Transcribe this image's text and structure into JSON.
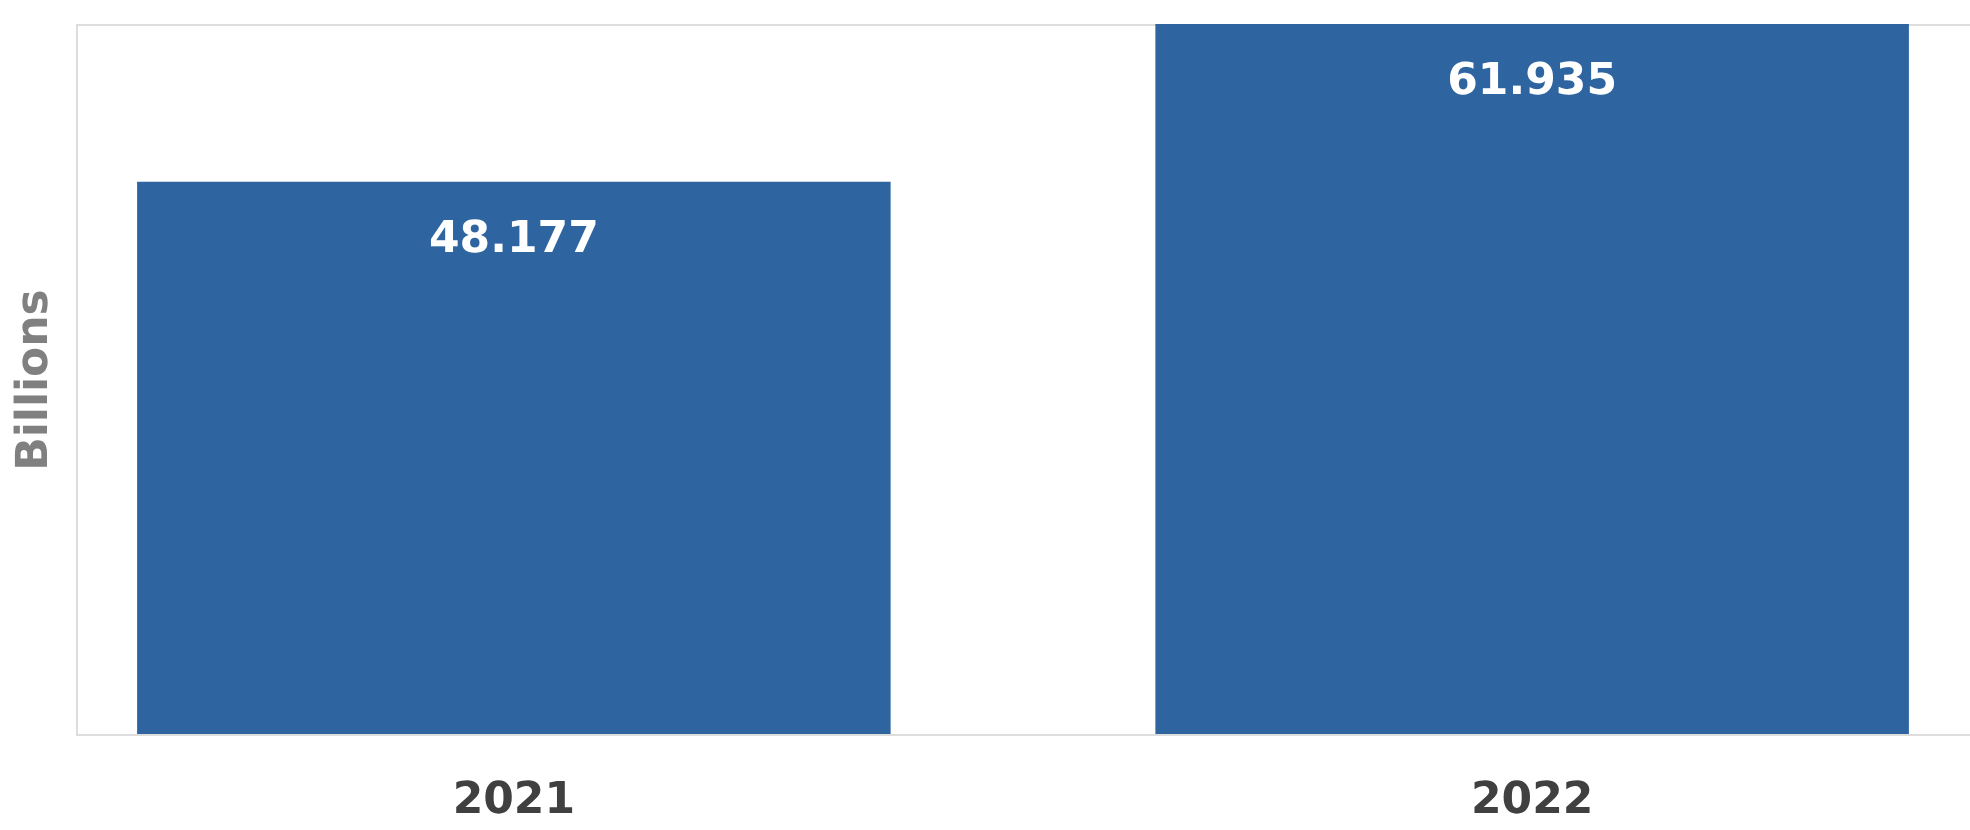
{
  "chart_data": {
    "type": "bar",
    "ylabel": "Billions",
    "categories": [
      "2021",
      "2022"
    ],
    "values": [
      48.177,
      61.935
    ],
    "color": "#2e64a0",
    "data_labels": true,
    "grid": false
  }
}
